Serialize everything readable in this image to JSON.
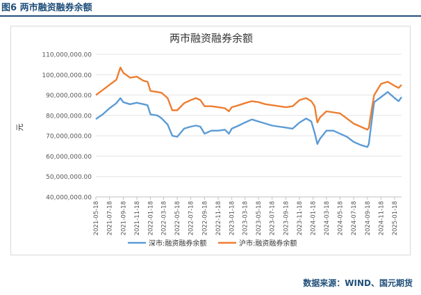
{
  "figure_label": "图6 两市融资融券余额",
  "source": "数据来源：WIND、国元期货",
  "colors": {
    "title_bar": "#1f4e79",
    "series_sz": "#5b9bd5",
    "series_sh": "#ed7d31"
  },
  "chart_data": {
    "type": "line",
    "title": "两市融资融券余额",
    "ylabel": "元",
    "xlabel": "",
    "ylim": [
      40000000,
      110000000
    ],
    "yticks": [
      40000000,
      50000000,
      60000000,
      70000000,
      80000000,
      90000000,
      100000000,
      110000000
    ],
    "ytick_labels": [
      "40,000,000.00",
      "50,000,000.00",
      "60,000,000.00",
      "70,000,000.00",
      "80,000,000.00",
      "90,000,000.00",
      "100,000,000.00",
      "110,000,000.00"
    ],
    "xtick_labels": [
      "2021-05-18",
      "2021-07-18",
      "2021-09-18",
      "2021-11-18",
      "2022-01-18",
      "2022-03-18",
      "2022-05-18",
      "2022-07-18",
      "2022-09-18",
      "2022-11-18",
      "2023-01-18",
      "2023-03-18",
      "2023-05-18",
      "2023-07-18",
      "2023-09-18",
      "2023-11-18",
      "2024-01-18",
      "2024-03-18",
      "2024-05-18",
      "2024-07-18",
      "2024-09-18",
      "2024-11-18",
      "2025-01-18"
    ],
    "grid": "horizontal",
    "legend": "bottom",
    "x": [
      "2021-05-18",
      "2021-06-18",
      "2021-07-18",
      "2021-08-18",
      "2021-09-05",
      "2021-09-18",
      "2021-10-18",
      "2021-11-18",
      "2021-12-18",
      "2022-01-05",
      "2022-01-18",
      "2022-02-18",
      "2022-03-10",
      "2022-04-05",
      "2022-04-26",
      "2022-05-18",
      "2022-06-18",
      "2022-07-18",
      "2022-08-10",
      "2022-08-30",
      "2022-09-18",
      "2022-10-18",
      "2022-11-18",
      "2022-12-18",
      "2023-01-05",
      "2023-01-18",
      "2023-02-18",
      "2023-03-18",
      "2023-04-18",
      "2023-05-18",
      "2023-06-18",
      "2023-07-18",
      "2023-08-18",
      "2023-09-18",
      "2023-10-18",
      "2023-11-18",
      "2023-12-18",
      "2024-01-10",
      "2024-01-25",
      "2024-02-06",
      "2024-02-18",
      "2024-03-18",
      "2024-04-18",
      "2024-05-18",
      "2024-06-18",
      "2024-07-18",
      "2024-08-18",
      "2024-09-18",
      "2024-09-24",
      "2024-10-08",
      "2024-10-18",
      "2024-11-18",
      "2024-12-18",
      "2025-01-18",
      "2025-02-05",
      "2025-02-18"
    ],
    "series": [
      {
        "name": "深市:融资融券余额",
        "values": [
          78.2,
          80.5,
          83.5,
          86.0,
          88.5,
          86.5,
          85.5,
          86.2,
          85.5,
          85.0,
          80.5,
          80.0,
          78.5,
          75.5,
          70.0,
          69.5,
          73.5,
          74.5,
          75.0,
          74.5,
          71.0,
          72.5,
          72.5,
          73.0,
          71.0,
          73.5,
          75.0,
          76.5,
          78.0,
          77.0,
          76.0,
          75.0,
          74.5,
          74.0,
          73.5,
          76.5,
          78.5,
          77.0,
          71.5,
          66.0,
          68.5,
          72.5,
          72.5,
          71.0,
          69.5,
          67.0,
          65.5,
          64.5,
          66.0,
          78.0,
          86.5,
          89.0,
          91.5,
          88.5,
          87.0,
          89.0
        ]
      },
      {
        "name": "沪市:融资融券余额",
        "values": [
          90.0,
          92.5,
          95.0,
          97.5,
          103.5,
          101.0,
          98.5,
          99.0,
          97.0,
          96.5,
          92.0,
          91.5,
          91.0,
          88.5,
          82.5,
          82.5,
          86.0,
          87.5,
          88.5,
          87.5,
          84.5,
          84.5,
          84.0,
          83.5,
          82.0,
          84.0,
          85.0,
          86.0,
          87.0,
          86.5,
          85.5,
          85.0,
          84.5,
          84.0,
          84.5,
          87.5,
          88.5,
          87.0,
          84.5,
          76.5,
          79.0,
          82.0,
          81.5,
          81.0,
          78.5,
          76.0,
          74.5,
          73.0,
          74.0,
          83.5,
          90.0,
          95.5,
          96.5,
          94.5,
          93.5,
          95.0
        ]
      }
    ]
  }
}
